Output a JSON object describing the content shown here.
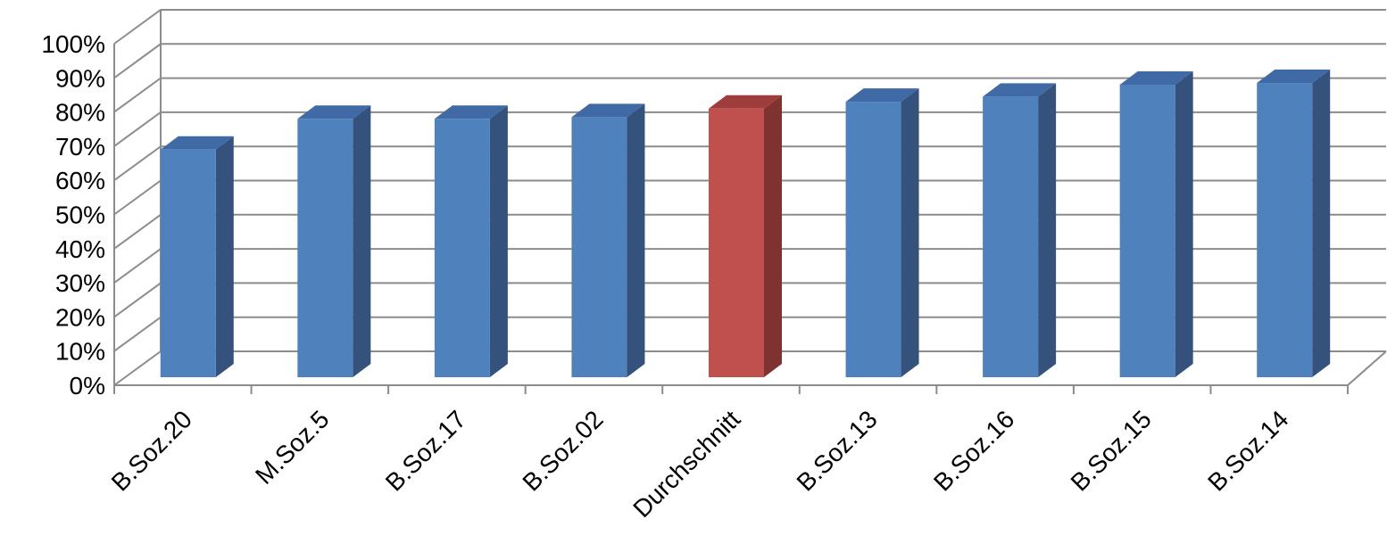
{
  "chart_data": {
    "type": "bar",
    "categories": [
      "B.Soz.20",
      "M.Soz.5",
      "B.Soz.17",
      "B.Soz.02",
      "Durchschnitt",
      "B.Soz.13",
      "B.Soz.16",
      "B.Soz.15",
      "B.Soz.14"
    ],
    "values": [
      0.69,
      0.78,
      0.78,
      0.785,
      0.81,
      0.83,
      0.845,
      0.88,
      0.885
    ],
    "highlight_category": "Durchschnitt",
    "yticks": [
      "0%",
      "10%",
      "20%",
      "30%",
      "40%",
      "50%",
      "60%",
      "70%",
      "80%",
      "90%",
      "100%"
    ],
    "ylim": [
      0,
      1
    ],
    "grid": true,
    "legend": "none",
    "style": "3d-column",
    "title": "",
    "xlabel": "",
    "ylabel": "",
    "colors": {
      "bar_front": "#4f81bd",
      "bar_side": "#34527b",
      "bar_top": "#3f6aa5",
      "highlight_front": "#c0504d",
      "highlight_side": "#7e3331",
      "highlight_top": "#9e3d3b",
      "grid": "#8c8c8c"
    }
  }
}
